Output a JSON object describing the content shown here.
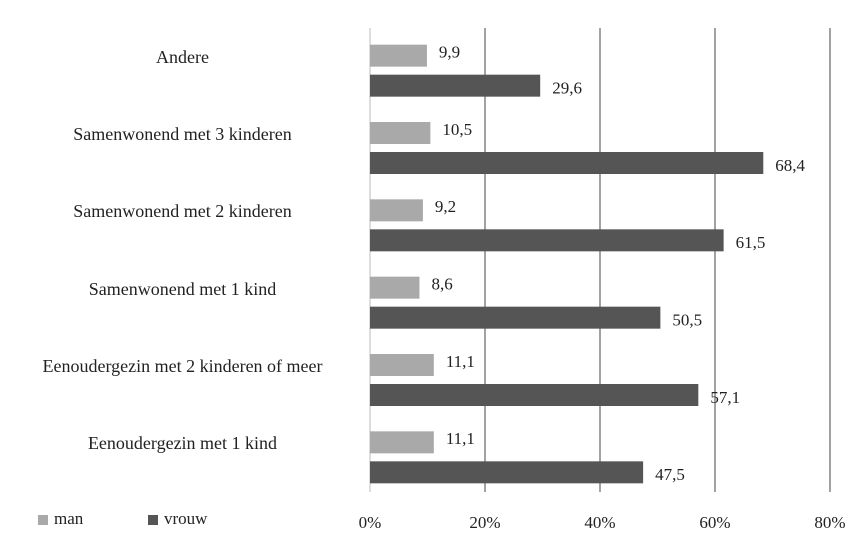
{
  "chart_data": {
    "type": "bar",
    "orientation": "horizontal",
    "categories": [
      "Andere",
      "Samenwonend met 3 kinderen",
      "Samenwonend met 2 kinderen",
      "Samenwonend met 1 kind",
      "Eenoudergezin met 2 kinderen of meer",
      "Eenoudergezin met 1 kind"
    ],
    "series": [
      {
        "name": "man",
        "color": "#a9a9a9",
        "values": [
          9.9,
          10.5,
          9.2,
          8.6,
          11.1,
          11.1
        ],
        "value_labels": [
          "9,9",
          "10,5",
          "9,2",
          "8,6",
          "11,1",
          "11,1"
        ]
      },
      {
        "name": "vrouw",
        "color": "#555555",
        "values": [
          29.6,
          68.4,
          61.5,
          50.5,
          57.1,
          47.5
        ],
        "value_labels": [
          "29,6",
          "68,4",
          "61,5",
          "50,5",
          "57,1",
          "47,5"
        ]
      }
    ],
    "xlim": [
      0,
      80
    ],
    "xticks": [
      {
        "value": 0,
        "label": "0%"
      },
      {
        "value": 20,
        "label": "20%"
      },
      {
        "value": 40,
        "label": "40%"
      },
      {
        "value": 60,
        "label": "60%"
      },
      {
        "value": 80,
        "label": "80%"
      }
    ],
    "grid": true,
    "legend": "bottom-left"
  }
}
